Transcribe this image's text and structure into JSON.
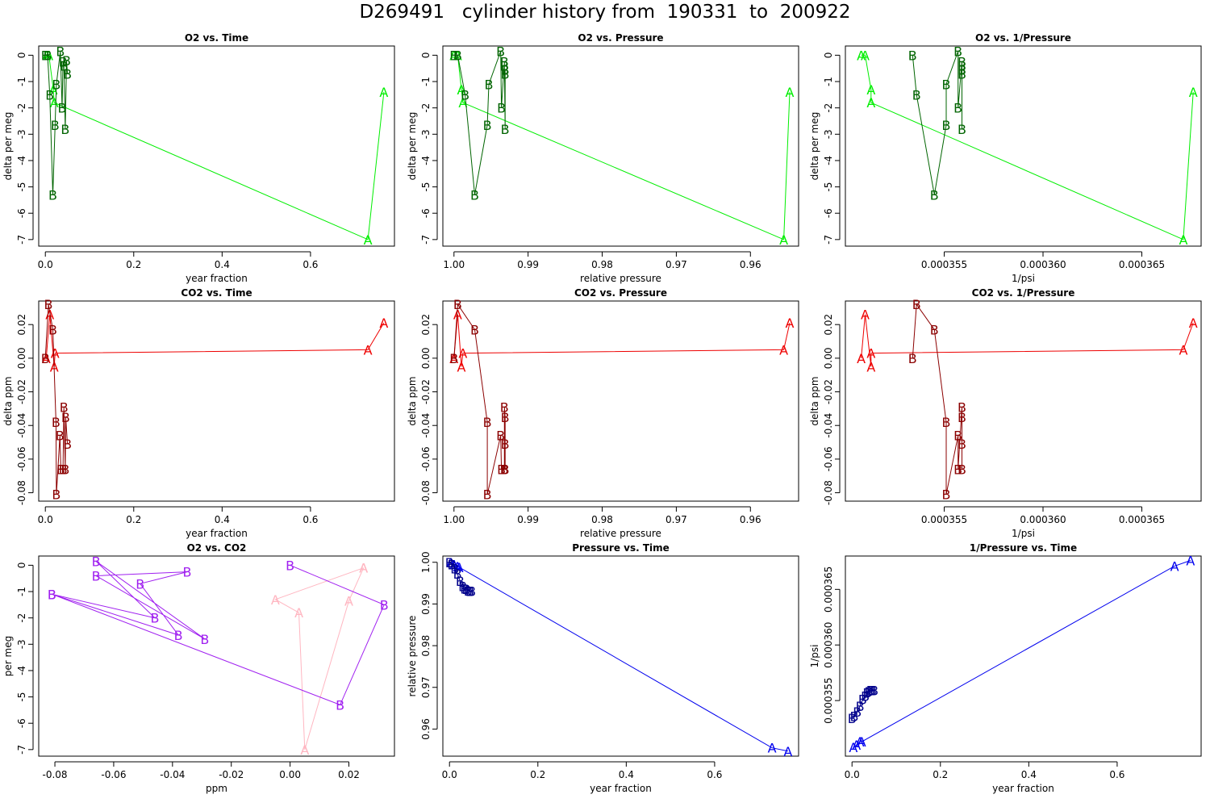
{
  "title": "D269491   cylinder history from  190331  to  200922",
  "chart_data": [
    {
      "id": "o2-time",
      "type": "scatter",
      "title": "O2 vs. Time",
      "xlabel": "year fraction",
      "ylabel": "delta per meg",
      "xlim": [
        -0.015,
        0.79
      ],
      "ylim": [
        -7.25,
        0.35
      ],
      "xticks": [
        0,
        0.2,
        0.4,
        0.6
      ],
      "xticklabels": [
        "0.0",
        "0.2",
        "0.4",
        "0.6"
      ],
      "yticks": [
        0,
        -1,
        -2,
        -3,
        -4,
        -5,
        -6,
        -7
      ],
      "yticklabels": [
        "0",
        "-1",
        "-2",
        "-3",
        "-4",
        "-5",
        "-6",
        "-7"
      ],
      "series": [
        {
          "color": "#00ee00",
          "marker": "A",
          "points": [
            [
              0.003,
              0
            ],
            [
              0.008,
              0
            ],
            [
              0.018,
              -1.3
            ],
            [
              0.02,
              -1.8
            ],
            [
              0.73,
              -7
            ],
            [
              0.766,
              -1.4
            ]
          ]
        },
        {
          "color": "#006400",
          "marker": "B",
          "points": [
            [
              0.0,
              0
            ],
            [
              0.005,
              0
            ],
            [
              0.01,
              -1.5
            ],
            [
              0.017,
              -5.3
            ],
            [
              0.022,
              -2.65
            ],
            [
              0.025,
              -1.1
            ],
            [
              0.034,
              0.15
            ],
            [
              0.038,
              -2
            ],
            [
              0.04,
              -0.25
            ],
            [
              0.042,
              -0.4
            ],
            [
              0.045,
              -2.8
            ],
            [
              0.048,
              -0.2
            ],
            [
              0.05,
              -0.7
            ]
          ]
        }
      ]
    },
    {
      "id": "o2-pressure",
      "type": "scatter",
      "title": "O2 vs. Pressure",
      "xlabel": "relative pressure",
      "ylabel": "delta per meg",
      "xlim": [
        1.0015,
        0.9535
      ],
      "ylim": [
        -7.25,
        0.35
      ],
      "xticks": [
        1.0,
        0.99,
        0.98,
        0.97,
        0.96
      ],
      "xticklabels": [
        "1.00",
        "0.99",
        "0.98",
        "0.97",
        "0.96"
      ],
      "yticks": [
        0,
        -1,
        -2,
        -3,
        -4,
        -5,
        -6,
        -7
      ],
      "yticklabels": [
        "0",
        "-1",
        "-2",
        "-3",
        "-4",
        "-5",
        "-6",
        "-7"
      ],
      "series": [
        {
          "color": "#00ee00",
          "marker": "A",
          "points": [
            [
              1.0,
              0
            ],
            [
              0.9995,
              0
            ],
            [
              0.999,
              -1.3
            ],
            [
              0.9988,
              -1.8
            ],
            [
              0.9555,
              -7
            ],
            [
              0.9547,
              -1.4
            ]
          ]
        },
        {
          "color": "#006400",
          "marker": "B",
          "points": [
            [
              1.0,
              0
            ],
            [
              0.9995,
              0
            ],
            [
              0.9985,
              -1.5
            ],
            [
              0.9972,
              -5.3
            ],
            [
              0.9955,
              -2.65
            ],
            [
              0.9953,
              -1.1
            ],
            [
              0.9937,
              0.15
            ],
            [
              0.9936,
              -2
            ],
            [
              0.9932,
              -0.25
            ],
            [
              0.9932,
              -0.4
            ],
            [
              0.9931,
              -2.8
            ],
            [
              0.9931,
              -0.55
            ],
            [
              0.9931,
              -0.7
            ]
          ]
        }
      ]
    },
    {
      "id": "o2-inv-pressure",
      "type": "scatter",
      "title": "O2 vs. 1/Pressure",
      "xlabel": "1/psi",
      "ylabel": "delta per meg",
      "xlim": [
        0.00035,
        0.000368
      ],
      "ylim": [
        -7.25,
        0.35
      ],
      "xticks": [
        0.000355,
        0.00036,
        0.000365
      ],
      "xticklabels": [
        "0.000355",
        "0.000360",
        "0.000365"
      ],
      "yticks": [
        0,
        -1,
        -2,
        -3,
        -4,
        -5,
        -6,
        -7
      ],
      "yticklabels": [
        "0",
        "-1",
        "-2",
        "-3",
        "-4",
        "-5",
        "-6",
        "-7"
      ],
      "series": [
        {
          "color": "#00ee00",
          "marker": "A",
          "points": [
            [
              0.0003508,
              0
            ],
            [
              0.000351,
              0
            ],
            [
              0.0003513,
              -1.3
            ],
            [
              0.0003513,
              -1.8
            ],
            [
              0.0003671,
              -7
            ],
            [
              0.0003676,
              -1.4
            ]
          ]
        },
        {
          "color": "#006400",
          "marker": "B",
          "points": [
            [
              0.0003534,
              0
            ],
            [
              0.0003536,
              -1.5
            ],
            [
              0.0003545,
              -5.3
            ],
            [
              0.0003551,
              -2.65
            ],
            [
              0.0003551,
              -1.1
            ],
            [
              0.0003557,
              0.15
            ],
            [
              0.0003557,
              -2
            ],
            [
              0.0003559,
              -0.25
            ],
            [
              0.0003559,
              -0.4
            ],
            [
              0.0003559,
              -0.55
            ],
            [
              0.0003559,
              -0.7
            ],
            [
              0.0003559,
              -2.8
            ]
          ]
        }
      ]
    },
    {
      "id": "co2-time",
      "type": "scatter",
      "title": "CO2 vs. Time",
      "xlabel": "year fraction",
      "ylabel": "delta ppm",
      "xlim": [
        -0.015,
        0.79
      ],
      "ylim": [
        -0.085,
        0.034
      ],
      "xticks": [
        0,
        0.2,
        0.4,
        0.6
      ],
      "xticklabels": [
        "0.0",
        "0.2",
        "0.4",
        "0.6"
      ],
      "yticks": [
        0.02,
        0.0,
        -0.02,
        -0.04,
        -0.06,
        -0.08
      ],
      "yticklabels": [
        "0.02",
        "0.00",
        "-0.02",
        "-0.04",
        "-0.06",
        "-0.08"
      ],
      "series": [
        {
          "color": "#ee0000",
          "marker": "A",
          "points": [
            [
              0.002,
              0
            ],
            [
              0.01,
              0.026
            ],
            [
              0.02,
              -0.005
            ],
            [
              0.022,
              0.003
            ],
            [
              0.73,
              0.005
            ],
            [
              0.766,
              0.021
            ]
          ]
        },
        {
          "color": "#8b0000",
          "marker": "B",
          "points": [
            [
              0.0,
              0
            ],
            [
              0.007,
              0.032
            ],
            [
              0.017,
              0.017
            ],
            [
              0.024,
              -0.038
            ],
            [
              0.025,
              -0.081
            ],
            [
              0.033,
              -0.046
            ],
            [
              0.035,
              -0.066
            ],
            [
              0.04,
              -0.066
            ],
            [
              0.042,
              -0.029
            ],
            [
              0.045,
              -0.066
            ],
            [
              0.046,
              -0.035
            ],
            [
              0.05,
              -0.051
            ]
          ]
        }
      ]
    },
    {
      "id": "co2-pressure",
      "type": "scatter",
      "title": "CO2 vs. Pressure",
      "xlabel": "relative pressure",
      "ylabel": "delta ppm",
      "xlim": [
        1.0015,
        0.9535
      ],
      "ylim": [
        -0.085,
        0.034
      ],
      "xticks": [
        1.0,
        0.99,
        0.98,
        0.97,
        0.96
      ],
      "xticklabels": [
        "1.00",
        "0.99",
        "0.98",
        "0.97",
        "0.96"
      ],
      "yticks": [
        0.02,
        0.0,
        -0.02,
        -0.04,
        -0.06,
        -0.08
      ],
      "yticklabels": [
        "0.02",
        "0.00",
        "-0.02",
        "-0.04",
        "-0.06",
        "-0.08"
      ],
      "series": [
        {
          "color": "#ee0000",
          "marker": "A",
          "points": [
            [
              1.0,
              0
            ],
            [
              0.9995,
              0.026
            ],
            [
              0.999,
              -0.005
            ],
            [
              0.9988,
              0.003
            ],
            [
              0.9555,
              0.005
            ],
            [
              0.9547,
              0.021
            ]
          ]
        },
        {
          "color": "#8b0000",
          "marker": "B",
          "points": [
            [
              1.0,
              0
            ],
            [
              0.9995,
              0.032
            ],
            [
              0.9972,
              0.017
            ],
            [
              0.9955,
              -0.038
            ],
            [
              0.9955,
              -0.081
            ],
            [
              0.9937,
              -0.046
            ],
            [
              0.9936,
              -0.066
            ],
            [
              0.9932,
              -0.066
            ],
            [
              0.9932,
              -0.029
            ],
            [
              0.9931,
              -0.035
            ],
            [
              0.9931,
              -0.051
            ],
            [
              0.9931,
              -0.066
            ]
          ]
        }
      ]
    },
    {
      "id": "co2-inv-pressure",
      "type": "scatter",
      "title": "CO2 vs. 1/Pressure",
      "xlabel": "1/psi",
      "ylabel": "delta ppm",
      "xlim": [
        0.00035,
        0.000368
      ],
      "ylim": [
        -0.085,
        0.034
      ],
      "xticks": [
        0.000355,
        0.00036,
        0.000365
      ],
      "xticklabels": [
        "0.000355",
        "0.000360",
        "0.000365"
      ],
      "yticks": [
        0.02,
        0.0,
        -0.02,
        -0.04,
        -0.06,
        -0.08
      ],
      "yticklabels": [
        "0.02",
        "0.00",
        "-0.02",
        "-0.04",
        "-0.06",
        "-0.08"
      ],
      "series": [
        {
          "color": "#ee0000",
          "marker": "A",
          "points": [
            [
              0.0003508,
              0
            ],
            [
              0.000351,
              0.026
            ],
            [
              0.0003513,
              -0.005
            ],
            [
              0.0003513,
              0.003
            ],
            [
              0.0003671,
              0.005
            ],
            [
              0.0003676,
              0.021
            ]
          ]
        },
        {
          "color": "#8b0000",
          "marker": "B",
          "points": [
            [
              0.0003534,
              0
            ],
            [
              0.0003536,
              0.032
            ],
            [
              0.0003545,
              0.017
            ],
            [
              0.0003551,
              -0.038
            ],
            [
              0.0003551,
              -0.081
            ],
            [
              0.0003557,
              -0.046
            ],
            [
              0.0003557,
              -0.066
            ],
            [
              0.0003559,
              -0.029
            ],
            [
              0.0003559,
              -0.035
            ],
            [
              0.0003559,
              -0.051
            ],
            [
              0.0003559,
              -0.066
            ]
          ]
        }
      ]
    },
    {
      "id": "o2-co2",
      "type": "scatter",
      "title": "O2 vs. CO2",
      "xlabel": "ppm",
      "ylabel": "per meg",
      "xlim": [
        -0.0855,
        0.0355
      ],
      "ylim": [
        -7.25,
        0.35
      ],
      "xticks": [
        -0.08,
        -0.06,
        -0.04,
        -0.02,
        0.0,
        0.02
      ],
      "xticklabels": [
        "-0.08",
        "-0.06",
        "-0.04",
        "-0.02",
        "0.00",
        "0.02"
      ],
      "yticks": [
        0,
        -1,
        -2,
        -3,
        -4,
        -5,
        -6,
        -7
      ],
      "yticklabels": [
        "0",
        "-1",
        "-2",
        "-3",
        "-4",
        "-5",
        "-6",
        "-7"
      ],
      "series": [
        {
          "color": "#ffb6c1",
          "marker": "A",
          "points": [
            [
              0.025,
              -0.1
            ],
            [
              -0.005,
              -1.3
            ],
            [
              0.003,
              -1.8
            ],
            [
              0.005,
              -7
            ],
            [
              0.02,
              -1.35
            ],
            [
              0.025,
              -0.1
            ]
          ]
        },
        {
          "color": "#a020f0",
          "marker": "B",
          "points": [
            [
              0.0,
              0
            ],
            [
              0.032,
              -1.5
            ],
            [
              0.017,
              -5.3
            ],
            [
              -0.081,
              -1.1
            ],
            [
              -0.046,
              -2
            ],
            [
              -0.066,
              0.15
            ],
            [
              -0.029,
              -2.8
            ],
            [
              -0.066,
              -0.4
            ],
            [
              -0.035,
              -0.25
            ],
            [
              -0.051,
              -0.7
            ],
            [
              -0.038,
              -2.65
            ],
            [
              -0.081,
              -1.1
            ]
          ]
        }
      ]
    },
    {
      "id": "pressure-time",
      "type": "scatter",
      "title": "Pressure vs. Time",
      "xlabel": "year fraction",
      "ylabel": "relative pressure",
      "xlim": [
        -0.015,
        0.79
      ],
      "ylim": [
        0.9535,
        1.0015
      ],
      "xticks": [
        0,
        0.2,
        0.4,
        0.6
      ],
      "xticklabels": [
        "0.0",
        "0.2",
        "0.4",
        "0.6"
      ],
      "yticks": [
        1.0,
        0.99,
        0.98,
        0.97,
        0.96
      ],
      "yticklabels": [
        "1.00",
        "0.99",
        "0.98",
        "0.97",
        "0.96"
      ],
      "series": [
        {
          "color": "#0000ee",
          "marker": "A",
          "points": [
            [
              0.003,
              1.0
            ],
            [
              0.01,
              0.9995
            ],
            [
              0.018,
              0.999
            ],
            [
              0.022,
              0.9988
            ],
            [
              0.73,
              0.9555
            ],
            [
              0.766,
              0.9547
            ]
          ]
        },
        {
          "color": "#00008b",
          "marker": "B",
          "points": [
            [
              0.0,
              1.0
            ],
            [
              0.005,
              0.9995
            ],
            [
              0.012,
              0.9985
            ],
            [
              0.018,
              0.9972
            ],
            [
              0.024,
              0.9955
            ],
            [
              0.03,
              0.9942
            ],
            [
              0.034,
              0.9937
            ],
            [
              0.038,
              0.9936
            ],
            [
              0.042,
              0.9932
            ],
            [
              0.046,
              0.9931
            ],
            [
              0.05,
              0.9931
            ]
          ]
        }
      ]
    },
    {
      "id": "inv-pressure-time",
      "type": "scatter",
      "title": "1/Pressure vs. Time",
      "xlabel": "year fraction",
      "ylabel": "1/psi",
      "xlim": [
        -0.015,
        0.79
      ],
      "ylim": [
        0.00035,
        0.000368
      ],
      "xticks": [
        0,
        0.2,
        0.4,
        0.6
      ],
      "xticklabels": [
        "0.0",
        "0.2",
        "0.4",
        "0.6"
      ],
      "yticks": [
        0.000355,
        0.00036,
        0.000365
      ],
      "yticklabels": [
        "0.000355",
        "0.000360",
        "0.000365"
      ],
      "series": [
        {
          "color": "#0000ee",
          "marker": "A",
          "points": [
            [
              0.003,
              0.0003508
            ],
            [
              0.01,
              0.000351
            ],
            [
              0.018,
              0.0003513
            ],
            [
              0.022,
              0.0003513
            ],
            [
              0.73,
              0.0003671
            ],
            [
              0.766,
              0.0003676
            ]
          ]
        },
        {
          "color": "#00008b",
          "marker": "B",
          "points": [
            [
              0.0,
              0.0003534
            ],
            [
              0.005,
              0.0003536
            ],
            [
              0.012,
              0.000354
            ],
            [
              0.018,
              0.0003545
            ],
            [
              0.024,
              0.0003551
            ],
            [
              0.03,
              0.0003554
            ],
            [
              0.034,
              0.0003557
            ],
            [
              0.038,
              0.0003558
            ],
            [
              0.042,
              0.0003559
            ],
            [
              0.046,
              0.0003559
            ],
            [
              0.05,
              0.0003559
            ]
          ]
        }
      ]
    }
  ]
}
